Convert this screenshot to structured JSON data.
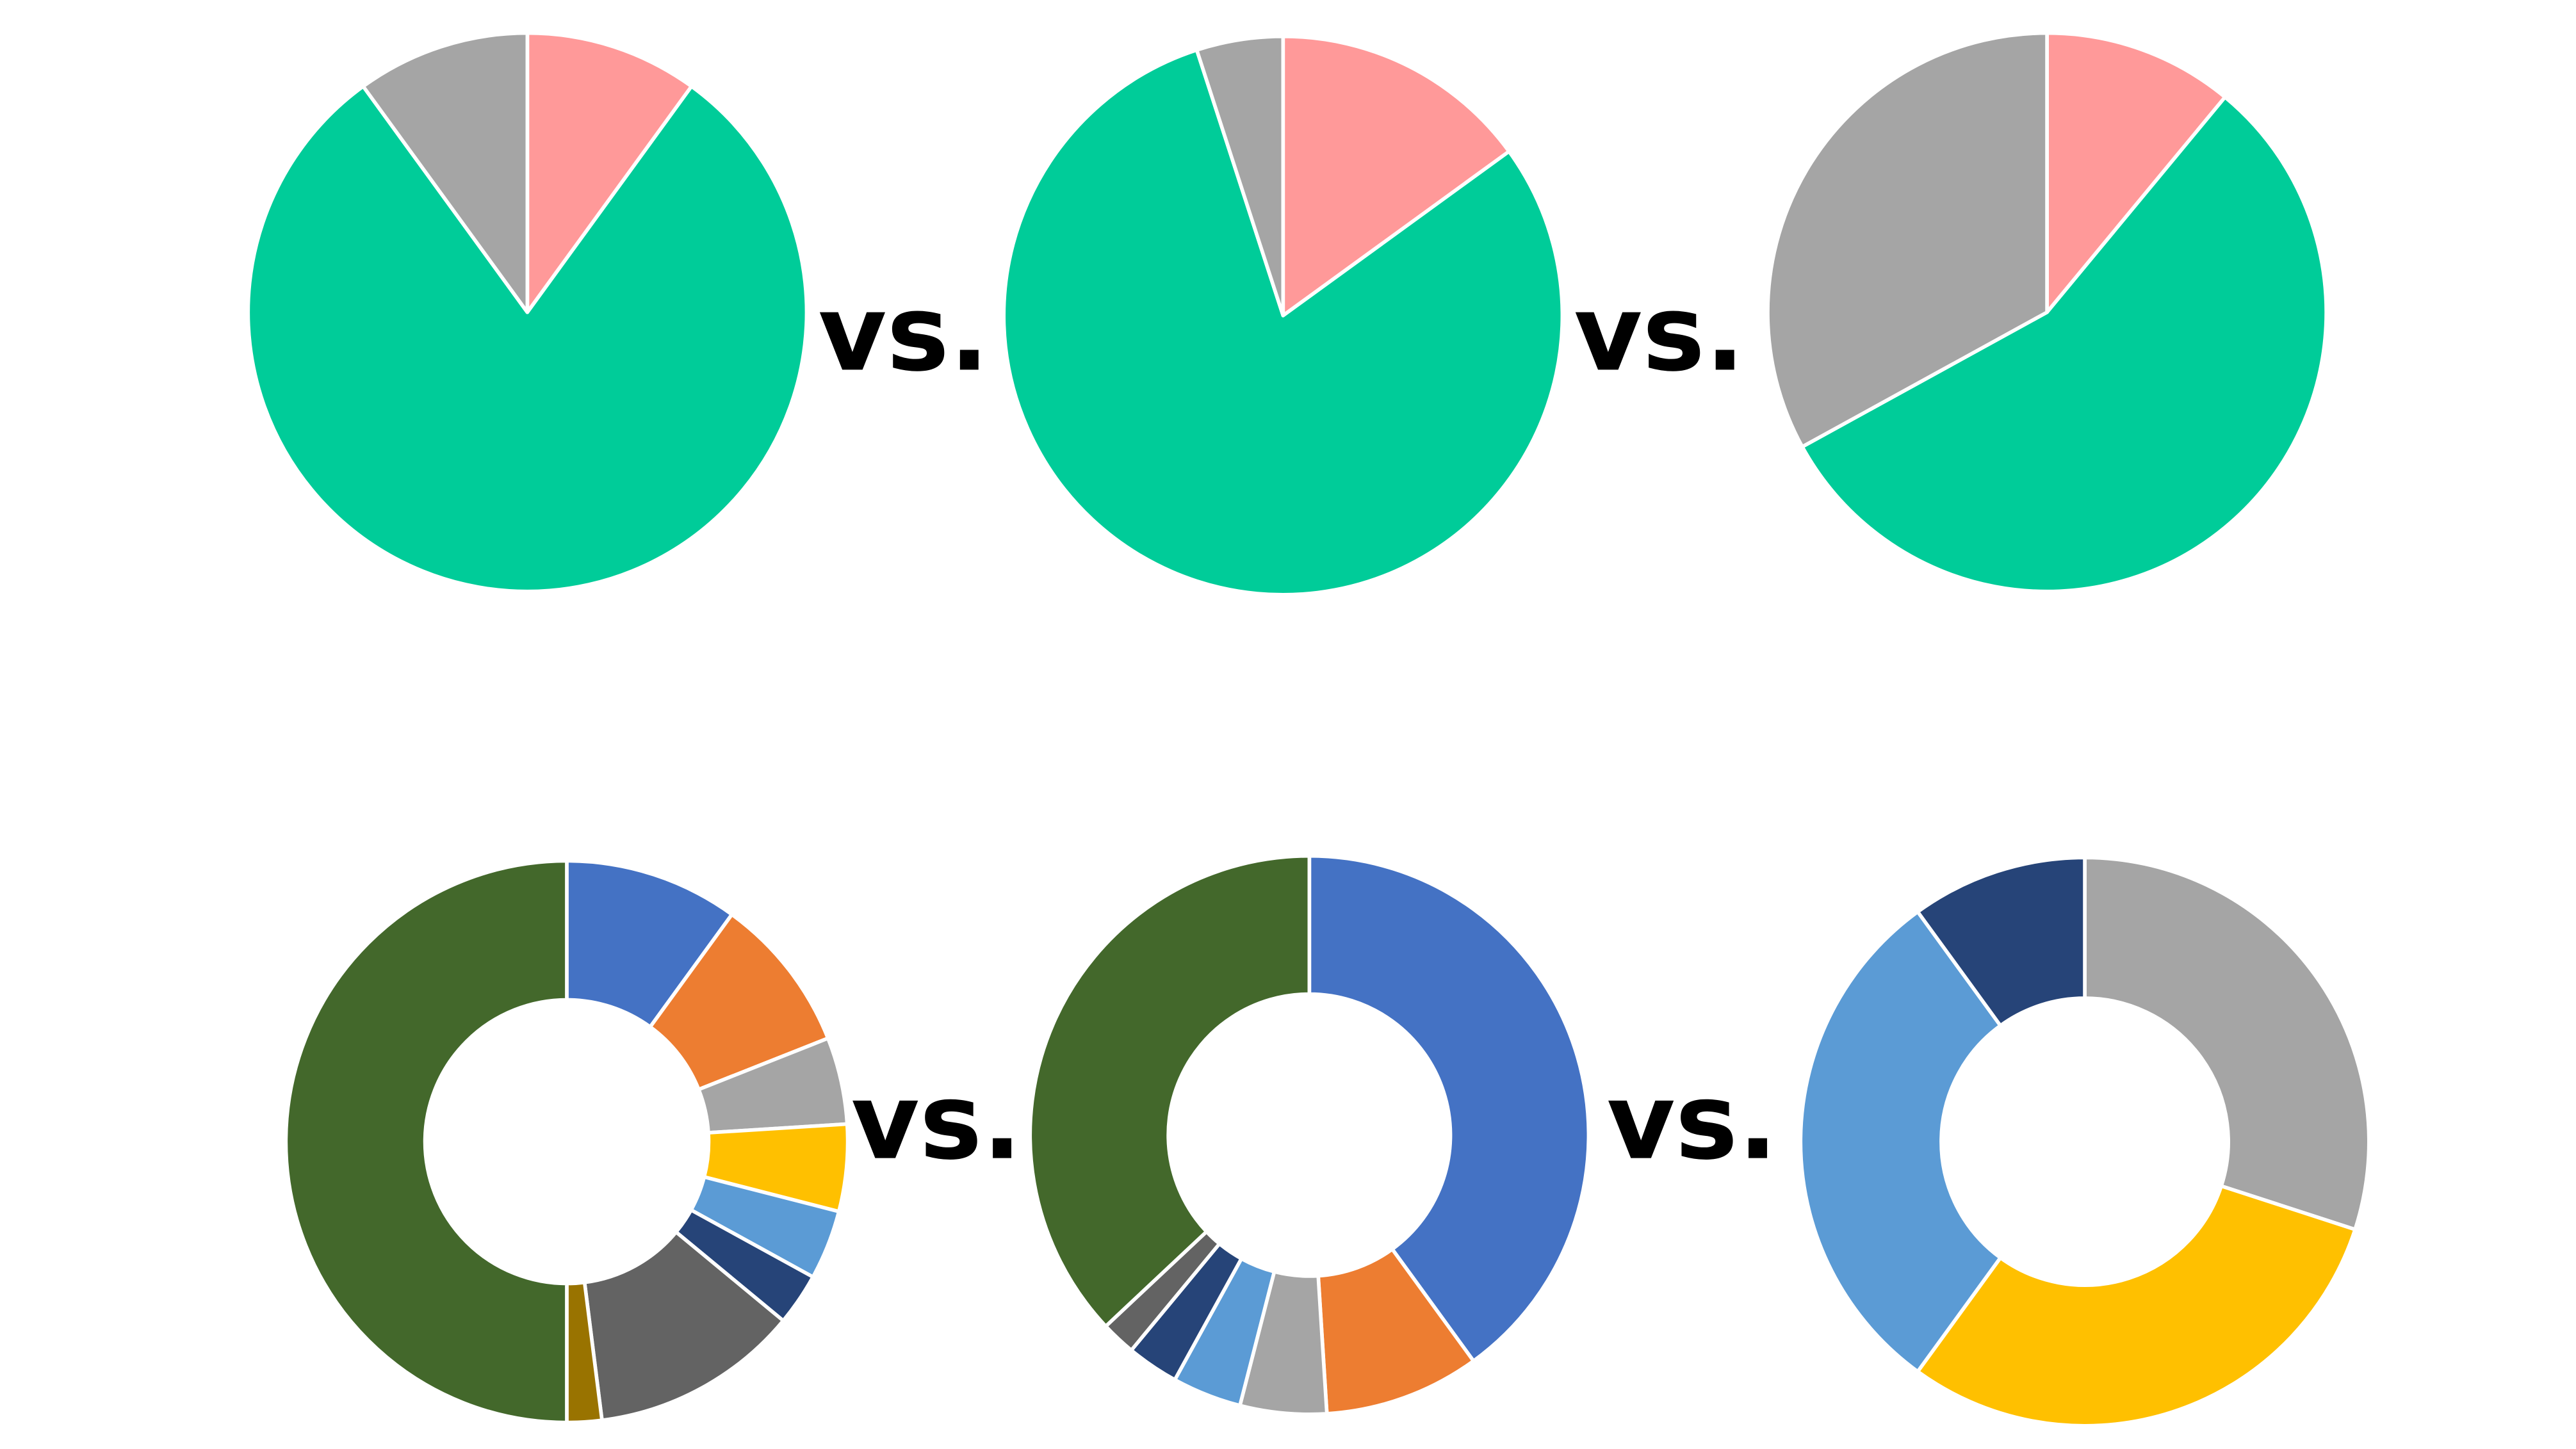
{
  "separator_label": "vs.",
  "chart_data": [
    {
      "type": "pie",
      "slices": [
        {
          "value": 10,
          "color": "#FF9999"
        },
        {
          "value": 80,
          "color": "#00CC99"
        },
        {
          "value": 10,
          "color": "#A5A5A5"
        }
      ]
    },
    {
      "type": "pie",
      "slices": [
        {
          "value": 15,
          "color": "#FF9999"
        },
        {
          "value": 80,
          "color": "#00CC99"
        },
        {
          "value": 5,
          "color": "#A5A5A5"
        }
      ]
    },
    {
      "type": "pie",
      "slices": [
        {
          "value": 11,
          "color": "#FF9999"
        },
        {
          "value": 56,
          "color": "#00CC99"
        },
        {
          "value": 33,
          "color": "#A5A5A5"
        }
      ]
    },
    {
      "type": "donut",
      "slices": [
        {
          "value": 10,
          "color": "#4472C4"
        },
        {
          "value": 9,
          "color": "#ED7D31"
        },
        {
          "value": 5,
          "color": "#A5A5A5"
        },
        {
          "value": 5,
          "color": "#FFC000"
        },
        {
          "value": 4,
          "color": "#5B9BD5"
        },
        {
          "value": 3,
          "color": "#264478"
        },
        {
          "value": 12,
          "color": "#636363"
        },
        {
          "value": 2,
          "color": "#997300"
        },
        {
          "value": 50,
          "color": "#43682B"
        }
      ]
    },
    {
      "type": "donut",
      "slices": [
        {
          "value": 40,
          "color": "#4472C4"
        },
        {
          "value": 9,
          "color": "#ED7D31"
        },
        {
          "value": 5,
          "color": "#A5A5A5"
        },
        {
          "value": 4,
          "color": "#5B9BD5"
        },
        {
          "value": 3,
          "color": "#264478"
        },
        {
          "value": 2,
          "color": "#636363"
        },
        {
          "value": 37,
          "color": "#43682B"
        }
      ]
    },
    {
      "type": "donut",
      "slices": [
        {
          "value": 30,
          "color": "#A5A5A5"
        },
        {
          "value": 30,
          "color": "#FFC000"
        },
        {
          "value": 30,
          "color": "#5B9BD5"
        },
        {
          "value": 10,
          "color": "#264478"
        }
      ]
    }
  ]
}
